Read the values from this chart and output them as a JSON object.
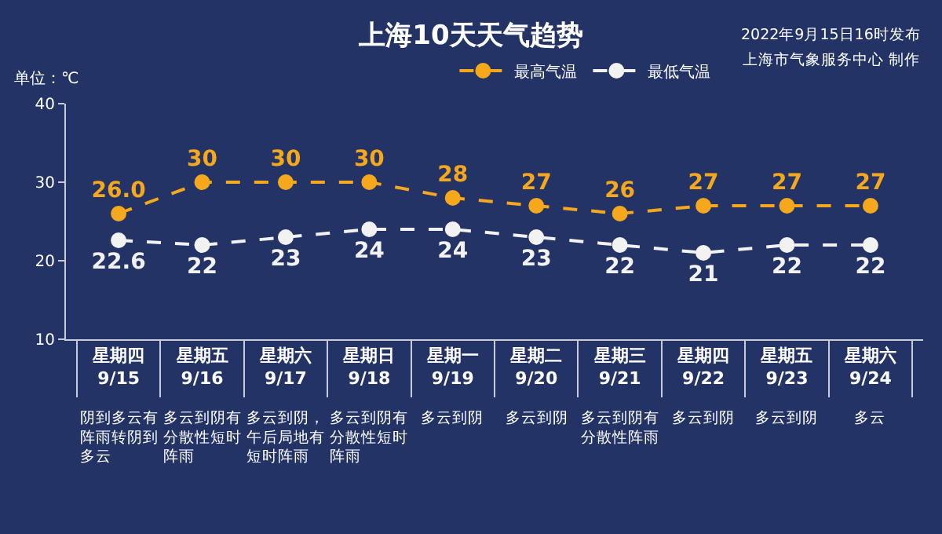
{
  "chart_data": {
    "type": "line",
    "title": "上海10天天气趋势",
    "ylabel": "单位：℃",
    "categories": [
      "星期四\n9/15",
      "星期五\n9/16",
      "星期六\n9/17",
      "星期日\n9/18",
      "星期一\n9/19",
      "星期二\n9/20",
      "星期三\n9/21",
      "星期四\n9/22",
      "星期五\n9/23",
      "星期六\n9/24"
    ],
    "series": [
      {
        "name": "最高气温",
        "color": "#f5a81c",
        "values": [
          26,
          30,
          30,
          30,
          28,
          27,
          26,
          27,
          27,
          27
        ],
        "value_labels": [
          "26.0",
          "30",
          "30",
          "30",
          "28",
          "27",
          "26",
          "27",
          "27",
          "27"
        ]
      },
      {
        "name": "最低气温",
        "color": "#f2f2f2",
        "values": [
          22.6,
          22,
          23,
          24,
          24,
          23,
          22,
          21,
          22,
          22
        ],
        "value_labels": [
          "22.6",
          "22",
          "23",
          "24",
          "24",
          "23",
          "22",
          "21",
          "22",
          "22"
        ]
      }
    ],
    "ylim": [
      10,
      40
    ],
    "yticks": [
      10,
      20,
      30,
      40
    ],
    "grid": false,
    "legend": "top",
    "marker": "circle",
    "line_style": "dashed",
    "annotations": [
      "2022年9月15日16时发布",
      "上海市气象服务中心 制作",
      "阴到多云有阵雨转阴到多云",
      "多云到阴有分散性短时阵雨",
      "多云到阴，午后局地有短时阵雨",
      "多云到阴有分散性短时阵雨",
      "多云到阴",
      "多云到阴",
      "多云到阴有分散性阵雨",
      "多云到阴",
      "多云到阴",
      "多云"
    ]
  }
}
